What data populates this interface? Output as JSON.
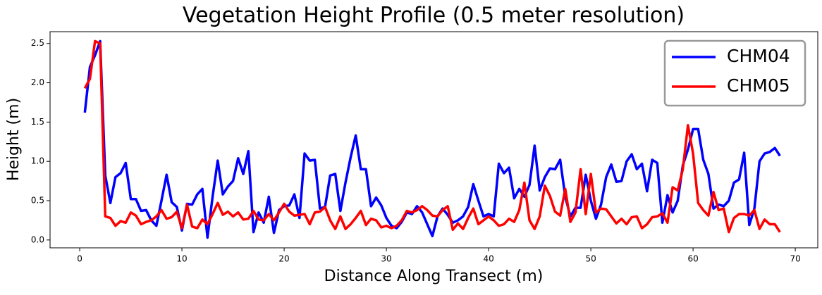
{
  "chart_data": {
    "type": "line",
    "title": "Vegetation Height Profile (0.5 meter resolution)",
    "x_label": "Distance Along Transect (m)",
    "y_label": "Height (m)",
    "x": [
      0.5,
      1,
      1.5,
      2,
      2.5,
      3,
      3.5,
      4,
      4.5,
      5,
      5.5,
      6,
      6.5,
      7,
      7.5,
      8,
      8.5,
      9,
      9.5,
      10,
      10.5,
      11,
      11.5,
      12,
      12.5,
      13,
      13.5,
      14,
      14.5,
      15,
      15.5,
      16,
      16.5,
      17,
      17.5,
      18,
      18.5,
      19,
      19.5,
      20,
      20.5,
      21,
      21.5,
      22,
      22.5,
      23,
      23.5,
      24,
      24.5,
      25,
      25.5,
      26,
      26.5,
      27,
      27.5,
      28,
      28.5,
      29,
      29.5,
      30,
      30.5,
      31,
      31.5,
      32,
      32.5,
      33,
      33.5,
      34,
      34.5,
      35,
      35.5,
      36,
      36.5,
      37,
      37.5,
      38,
      38.5,
      39,
      39.5,
      40,
      40.5,
      41,
      41.5,
      42,
      42.5,
      43,
      43.5,
      44,
      44.5,
      45,
      45.5,
      46,
      46.5,
      47,
      47.5,
      48,
      48.5,
      49,
      49.5,
      50,
      50.5,
      51,
      51.5,
      52,
      52.5,
      53,
      53.5,
      54,
      54.5,
      55,
      55.5,
      56,
      56.5,
      57,
      57.5,
      58,
      58.5,
      59,
      59.5,
      60,
      60.5,
      61,
      61.5,
      62,
      62.5,
      63,
      63.5,
      64,
      64.5,
      65,
      65.5,
      66,
      66.5,
      67,
      67.5,
      68,
      68.5
    ],
    "series": [
      {
        "name": "CHM04",
        "color": "#0000ff",
        "values": [
          1.62,
          2.2,
          2.35,
          2.53,
          0.82,
          0.47,
          0.8,
          0.85,
          0.98,
          0.52,
          0.52,
          0.37,
          0.38,
          0.25,
          0.18,
          0.5,
          0.83,
          0.48,
          0.42,
          0.12,
          0.46,
          0.45,
          0.58,
          0.65,
          0.03,
          0.55,
          1.01,
          0.58,
          0.68,
          0.75,
          1.04,
          0.84,
          1.13,
          0.1,
          0.35,
          0.22,
          0.55,
          0.09,
          0.38,
          0.43,
          0.44,
          0.58,
          0.28,
          1.1,
          1.01,
          1.02,
          0.4,
          0.42,
          0.82,
          0.84,
          0.37,
          0.73,
          1.05,
          1.33,
          0.9,
          0.9,
          0.43,
          0.54,
          0.44,
          0.28,
          0.18,
          0.15,
          0.23,
          0.35,
          0.33,
          0.43,
          0.35,
          0.2,
          0.05,
          0.3,
          0.4,
          0.32,
          0.22,
          0.25,
          0.3,
          0.42,
          0.71,
          0.5,
          0.3,
          0.33,
          0.3,
          0.97,
          0.85,
          0.92,
          0.53,
          0.65,
          0.55,
          0.7,
          1.2,
          0.63,
          0.8,
          0.91,
          0.9,
          1.02,
          0.55,
          0.3,
          0.41,
          0.41,
          0.83,
          0.5,
          0.27,
          0.45,
          0.8,
          0.96,
          0.74,
          0.75,
          1.0,
          1.09,
          0.9,
          0.97,
          0.62,
          1.02,
          0.98,
          0.22,
          0.57,
          0.35,
          0.5,
          0.95,
          1.15,
          1.41,
          1.41,
          1.02,
          0.84,
          0.4,
          0.45,
          0.43,
          0.5,
          0.73,
          0.77,
          1.11,
          0.19,
          0.4,
          1.0,
          1.1,
          1.12,
          1.17,
          1.07
        ]
      },
      {
        "name": "CHM05",
        "color": "#ff0000",
        "values": [
          1.93,
          2.05,
          2.53,
          2.5,
          0.3,
          0.28,
          0.18,
          0.24,
          0.22,
          0.35,
          0.31,
          0.2,
          0.23,
          0.25,
          0.3,
          0.38,
          0.27,
          0.29,
          0.36,
          0.15,
          0.45,
          0.17,
          0.15,
          0.26,
          0.2,
          0.33,
          0.47,
          0.32,
          0.36,
          0.3,
          0.35,
          0.26,
          0.27,
          0.37,
          0.26,
          0.25,
          0.33,
          0.25,
          0.35,
          0.46,
          0.36,
          0.31,
          0.32,
          0.33,
          0.2,
          0.35,
          0.36,
          0.42,
          0.25,
          0.14,
          0.3,
          0.14,
          0.2,
          0.28,
          0.37,
          0.19,
          0.27,
          0.25,
          0.16,
          0.18,
          0.15,
          0.18,
          0.25,
          0.37,
          0.35,
          0.38,
          0.43,
          0.38,
          0.31,
          0.3,
          0.38,
          0.43,
          0.13,
          0.21,
          0.14,
          0.28,
          0.4,
          0.2,
          0.25,
          0.3,
          0.25,
          0.18,
          0.2,
          0.27,
          0.23,
          0.38,
          0.73,
          0.25,
          0.14,
          0.3,
          0.69,
          0.56,
          0.36,
          0.31,
          0.65,
          0.23,
          0.35,
          0.9,
          0.33,
          0.84,
          0.35,
          0.4,
          0.39,
          0.3,
          0.21,
          0.27,
          0.2,
          0.29,
          0.3,
          0.15,
          0.2,
          0.29,
          0.3,
          0.34,
          0.22,
          0.67,
          0.63,
          0.9,
          1.46,
          1.1,
          0.47,
          0.38,
          0.31,
          0.61,
          0.38,
          0.4,
          0.1,
          0.28,
          0.33,
          0.33,
          0.31,
          0.38,
          0.14,
          0.26,
          0.2,
          0.2,
          0.1
        ]
      }
    ],
    "xlim": [
      -2.9,
      72.2
    ],
    "xticks": [
      0,
      10,
      20,
      30,
      40,
      50,
      60,
      70
    ],
    "ylim": [
      -0.1,
      2.65
    ],
    "yticks": [
      {
        "value": 0,
        "label": "0.0"
      },
      0.5,
      {
        "value": 1,
        "label": "1.0"
      },
      1.5,
      {
        "value": 2,
        "label": "2.0"
      },
      2.5
    ],
    "legend": "upper right"
  }
}
